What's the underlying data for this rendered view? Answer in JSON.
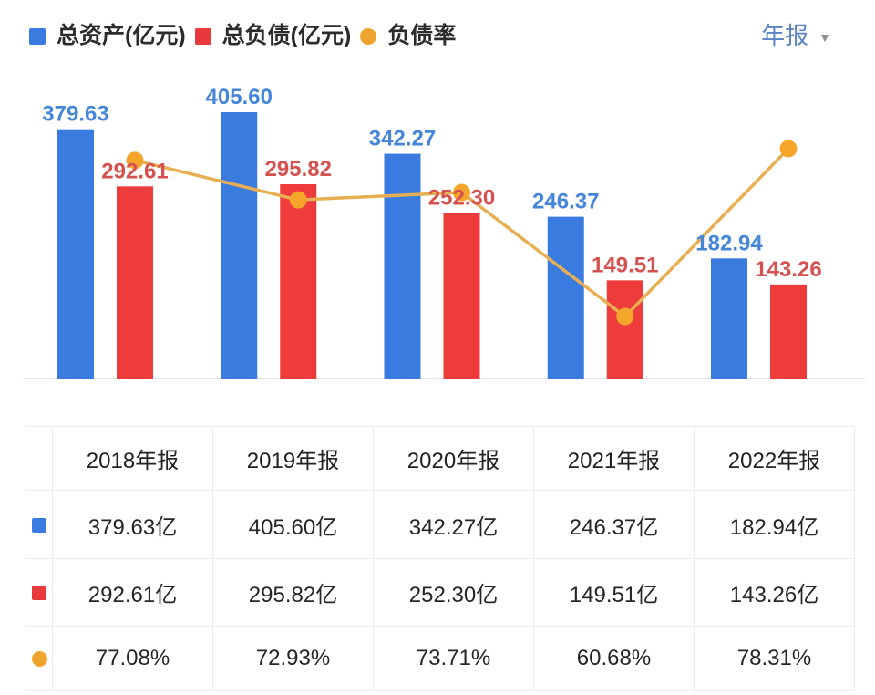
{
  "legend": {
    "items": [
      {
        "label": "总资产(亿元)",
        "marker": "square",
        "color": "#3a7be0"
      },
      {
        "label": "总负债(亿元)",
        "marker": "square",
        "color": "#e8393c"
      },
      {
        "label": "负债率",
        "marker": "circle",
        "color": "#efa42f"
      }
    ]
  },
  "period": {
    "label": "年报",
    "caret": "▼"
  },
  "chart_data": {
    "type": "bar",
    "subtype": "grouped bars with overlay line",
    "categories": [
      "2018年报",
      "2019年报",
      "2020年报",
      "2021年报",
      "2022年报"
    ],
    "series": [
      {
        "name": "总资产(亿元)",
        "type": "bar",
        "color": "#3a7be0",
        "label_color": "#4586d8",
        "values": [
          379.63,
          405.6,
          342.27,
          246.37,
          182.94
        ]
      },
      {
        "name": "总负债(亿元)",
        "type": "bar",
        "color": "#ee3b3b",
        "label_color": "#d5514f",
        "values": [
          292.61,
          295.82,
          252.3,
          149.51,
          143.26
        ]
      },
      {
        "name": "负债率",
        "type": "line",
        "unit": "%",
        "color": "#e8af52",
        "point_color": "#f4a52a",
        "values": [
          77.08,
          72.93,
          73.71,
          60.68,
          78.31
        ]
      }
    ],
    "value_labels": "on",
    "axes_visible": false,
    "legend_position": "top-left"
  },
  "table": {
    "headers": [
      "",
      "2018年报",
      "2019年报",
      "2020年报",
      "2021年报",
      "2022年报"
    ],
    "rows": [
      {
        "marker": "square",
        "color": "#3a7be0",
        "cells": [
          "379.63亿",
          "405.60亿",
          "342.27亿",
          "246.37亿",
          "182.94亿"
        ]
      },
      {
        "marker": "square",
        "color": "#e8393c",
        "cells": [
          "292.61亿",
          "295.82亿",
          "252.30亿",
          "149.51亿",
          "143.26亿"
        ]
      },
      {
        "marker": "circle",
        "color": "#efa42f",
        "cells": [
          "77.08%",
          "72.93%",
          "73.71%",
          "60.68%",
          "78.31%"
        ]
      }
    ]
  }
}
